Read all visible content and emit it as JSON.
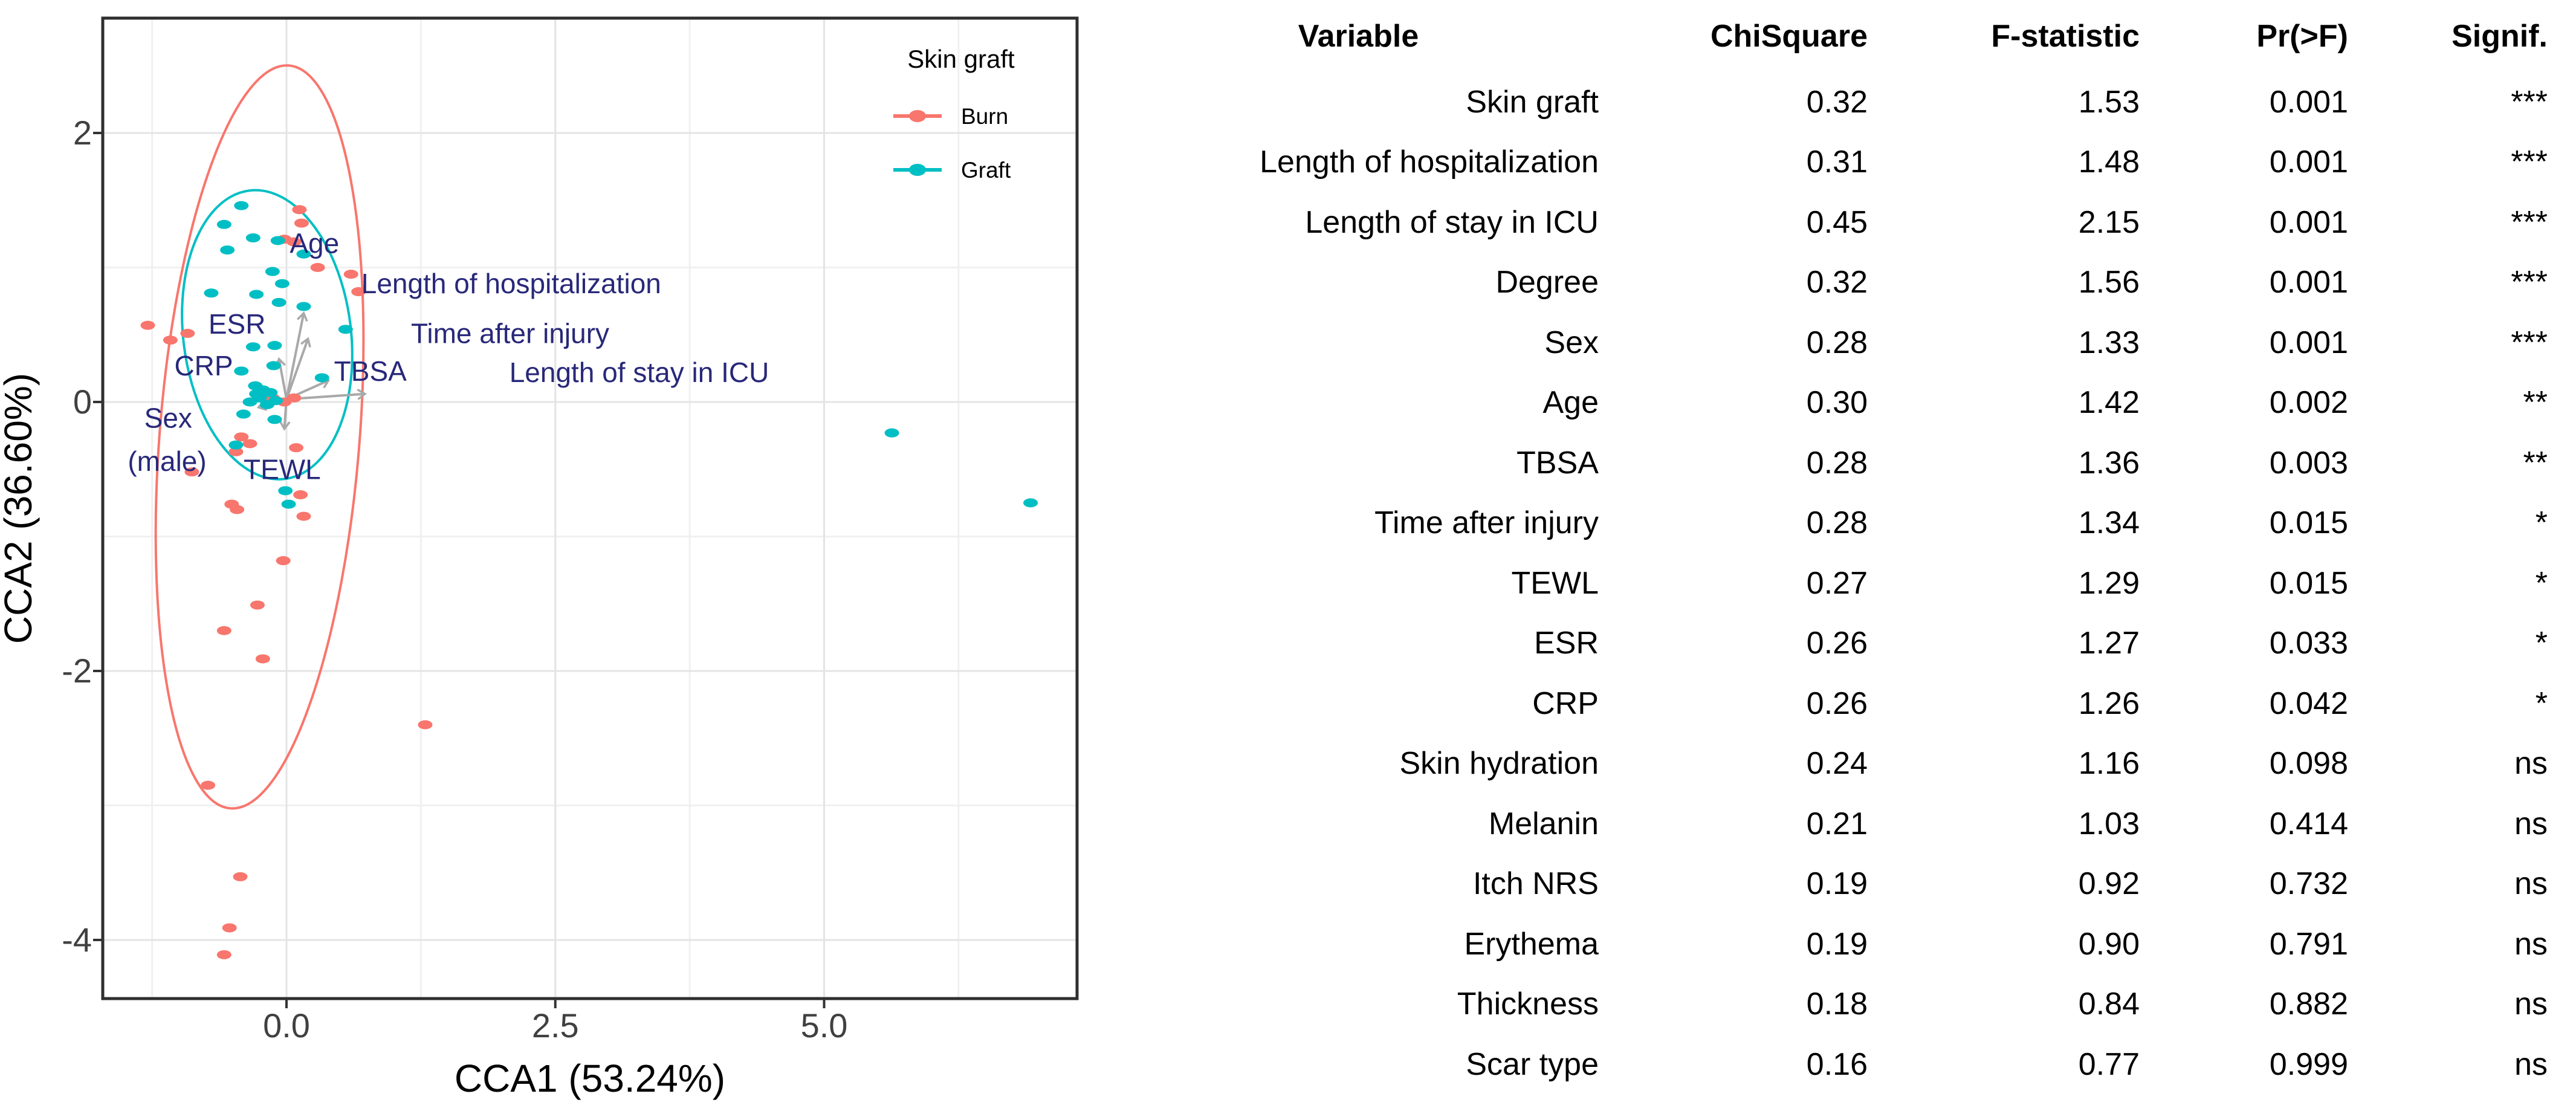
{
  "figure_type": "cca-ordination-with-stats-table",
  "colors": {
    "burn": "#F8766D",
    "graft": "#00BFC4",
    "biplot_label": "#28287A",
    "arrow": "#A9A9A9",
    "grid_major": "#E4E4E4",
    "grid_minor": "#F0F0F0",
    "panel_border": "#2F2F2F",
    "tick_text": "#404040",
    "axis_title": "#000000"
  },
  "chart_data": [
    {
      "type": "scatter",
      "title": "",
      "xlabel": "CCA1 (53.24%)",
      "ylabel": "CCA2 (36.60%)",
      "xlim": [
        -1.71,
        7.43
      ],
      "ylim": [
        -4.44,
        2.85
      ],
      "grid": true,
      "x_major_ticks": [
        0,
        2.5,
        5
      ],
      "x_tick_labels": [
        "0.0",
        "2.5",
        "5.0"
      ],
      "y_major_ticks": [
        2,
        0,
        -2,
        -4
      ],
      "y_tick_labels": [
        "2",
        "0",
        "-2",
        "-4"
      ],
      "x_minor_ticks": [
        -1.25,
        1.25,
        3.75,
        6.25
      ],
      "y_minor_ticks": [
        1,
        -1,
        -3
      ],
      "legend": {
        "title": "Skin graft",
        "position": "top-right-inside",
        "items": [
          {
            "name": "Burn",
            "color": "#F8766D"
          },
          {
            "name": "Graft",
            "color": "#00BFC4"
          }
        ]
      },
      "series": [
        {
          "name": "Burn",
          "color": "#F8766D",
          "points": [
            [
              -1.29,
              0.57
            ],
            [
              -1.08,
              0.46
            ],
            [
              -0.92,
              0.51
            ],
            [
              0.12,
              1.43
            ],
            [
              0.14,
              1.33
            ],
            [
              -0.02,
              1.21
            ],
            [
              0.07,
              1.19
            ],
            [
              0.29,
              1.0
            ],
            [
              0.6,
              0.95
            ],
            [
              0.67,
              0.82
            ],
            [
              -0.21,
              0.05
            ],
            [
              -0.13,
              0.03
            ],
            [
              -0.02,
              0.0
            ],
            [
              0.07,
              0.03
            ],
            [
              -0.42,
              -0.26
            ],
            [
              -0.34,
              -0.31
            ],
            [
              -0.47,
              -0.37
            ],
            [
              -0.88,
              -0.52
            ],
            [
              -0.51,
              -0.76
            ],
            [
              -0.46,
              -0.8
            ],
            [
              0.09,
              -0.34
            ],
            [
              0.13,
              -0.69
            ],
            [
              0.16,
              -0.85
            ],
            [
              -0.03,
              -1.18
            ],
            [
              -0.27,
              -1.51
            ],
            [
              -0.58,
              -1.7
            ],
            [
              -0.22,
              -1.91
            ],
            [
              1.29,
              -2.4
            ],
            [
              -0.73,
              -2.85
            ],
            [
              -0.43,
              -3.53
            ],
            [
              -0.53,
              -3.91
            ],
            [
              -0.58,
              -4.11
            ]
          ]
        },
        {
          "name": "Graft",
          "color": "#00BFC4",
          "points": [
            [
              -0.42,
              1.46
            ],
            [
              -0.58,
              1.32
            ],
            [
              -0.31,
              1.22
            ],
            [
              -0.55,
              1.13
            ],
            [
              -0.08,
              1.2
            ],
            [
              0.16,
              1.1
            ],
            [
              -0.13,
              0.97
            ],
            [
              -0.04,
              0.88
            ],
            [
              -0.7,
              0.81
            ],
            [
              -0.28,
              0.8
            ],
            [
              0.16,
              0.71
            ],
            [
              -0.07,
              0.74
            ],
            [
              0.55,
              0.54
            ],
            [
              -0.31,
              0.41
            ],
            [
              -0.11,
              0.42
            ],
            [
              -0.42,
              0.23
            ],
            [
              -0.12,
              0.27
            ],
            [
              -0.29,
              0.12
            ],
            [
              -0.28,
              0.06
            ],
            [
              -0.25,
              0.03
            ],
            [
              -0.15,
              0.07
            ],
            [
              -0.34,
              0.0
            ],
            [
              -0.18,
              -0.02
            ],
            [
              -0.1,
              0.01
            ],
            [
              -0.22,
              0.09
            ],
            [
              -0.4,
              -0.09
            ],
            [
              -0.11,
              -0.13
            ],
            [
              0.33,
              0.18
            ],
            [
              -0.47,
              -0.32
            ],
            [
              -0.01,
              -0.66
            ],
            [
              0.02,
              -0.76
            ],
            [
              5.63,
              -0.23
            ],
            [
              6.92,
              -0.75
            ]
          ]
        }
      ],
      "ellipses": [
        {
          "group": "Burn",
          "color": "#F8766D",
          "cx": -0.25,
          "cy": -0.26,
          "rx": 0.93,
          "ry": 2.77,
          "angle_deg": 4.5
        },
        {
          "group": "Graft",
          "color": "#00BFC4",
          "cx": -0.18,
          "cy": 0.5,
          "rx": 0.78,
          "ry": 1.08,
          "angle_deg": -7
        }
      ],
      "arrows": {
        "color": "#A9A9A9",
        "origin": [
          0,
          0.02
        ],
        "vectors": [
          [
            0.16,
            0.66
          ],
          [
            0.2,
            0.47
          ],
          [
            -0.07,
            0.32
          ],
          [
            0.39,
            0.16
          ],
          [
            0.73,
            0.06
          ],
          [
            -0.26,
            -0.04
          ],
          [
            -0.02,
            -0.2
          ]
        ]
      },
      "variable_labels": {
        "color": "#28287A",
        "items": [
          {
            "text": "Age",
            "x": 0.26,
            "y": 1.18
          },
          {
            "text": "Length of hospitalization",
            "x": 2.09,
            "y": 0.88
          },
          {
            "text": "Time after injury",
            "x": 2.08,
            "y": 0.51
          },
          {
            "text": "TBSA",
            "x": 0.78,
            "y": 0.23
          },
          {
            "text": "Length of stay in ICU",
            "x": 3.28,
            "y": 0.22
          },
          {
            "text": "ESR",
            "x": -0.46,
            "y": 0.58
          },
          {
            "text": "CRP",
            "x": -0.77,
            "y": 0.27
          },
          {
            "text": "Sex",
            "x": -1.1,
            "y": -0.12
          },
          {
            "text": "(male)",
            "x": -1.11,
            "y": -0.44
          },
          {
            "text": "TEWL",
            "x": -0.04,
            "y": -0.5
          }
        ]
      }
    },
    {
      "type": "table",
      "columns": [
        "Variable",
        "ChiSquare",
        "F-statistic",
        "Pr(>F)",
        "Signif."
      ],
      "rows": [
        [
          "Skin graft",
          "0.32",
          "1.53",
          "0.001",
          "***"
        ],
        [
          "Length of hospitalization",
          "0.31",
          "1.48",
          "0.001",
          "***"
        ],
        [
          "Length of stay in ICU",
          "0.45",
          "2.15",
          "0.001",
          "***"
        ],
        [
          "Degree",
          "0.32",
          "1.56",
          "0.001",
          "***"
        ],
        [
          "Sex",
          "0.28",
          "1.33",
          "0.001",
          "***"
        ],
        [
          "Age",
          "0.30",
          "1.42",
          "0.002",
          "**"
        ],
        [
          "TBSA",
          "0.28",
          "1.36",
          "0.003",
          "**"
        ],
        [
          "Time after injury",
          "0.28",
          "1.34",
          "0.015",
          "*"
        ],
        [
          "TEWL",
          "0.27",
          "1.29",
          "0.015",
          "*"
        ],
        [
          "ESR",
          "0.26",
          "1.27",
          "0.033",
          "*"
        ],
        [
          "CRP",
          "0.26",
          "1.26",
          "0.042",
          "*"
        ],
        [
          "Skin hydration",
          "0.24",
          "1.16",
          "0.098",
          "ns"
        ],
        [
          "Melanin",
          "0.21",
          "1.03",
          "0.414",
          "ns"
        ],
        [
          "Itch NRS",
          "0.19",
          "0.92",
          "0.732",
          "ns"
        ],
        [
          "Erythema",
          "0.19",
          "0.90",
          "0.791",
          "ns"
        ],
        [
          "Thickness",
          "0.18",
          "0.84",
          "0.882",
          "ns"
        ],
        [
          "Scar type",
          "0.16",
          "0.77",
          "0.999",
          "ns"
        ]
      ]
    }
  ]
}
